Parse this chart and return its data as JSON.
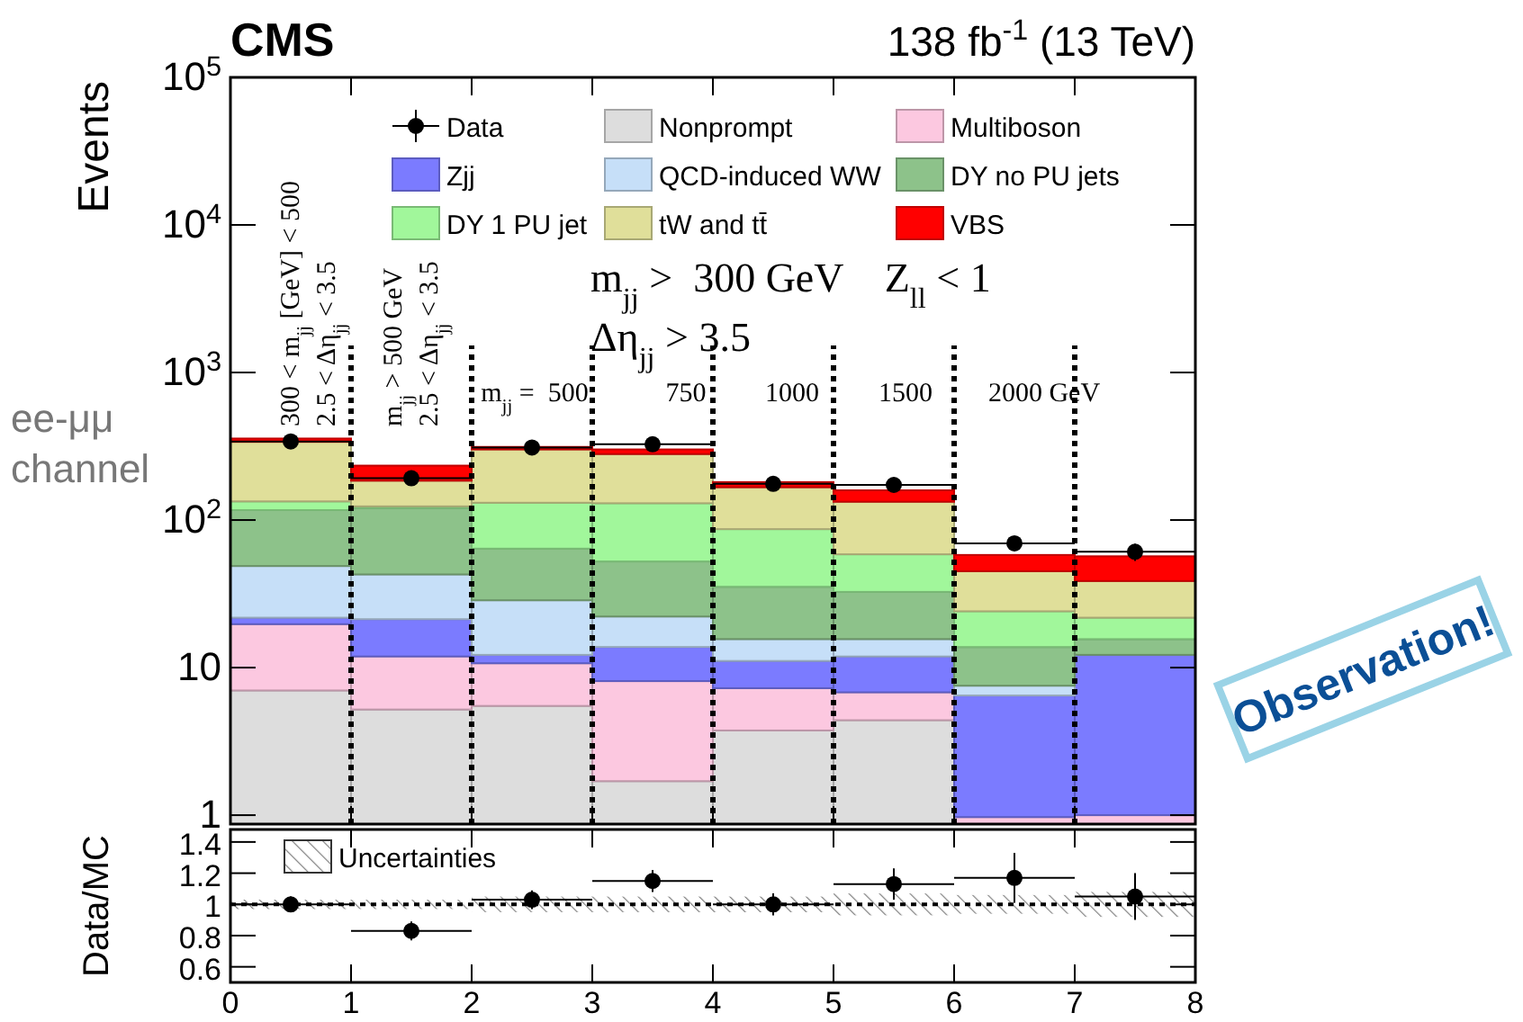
{
  "chart_data": [
    {
      "type": "bar",
      "title": "CMS",
      "subtitle": "138 fb$^{-1}$ (13 TeV)",
      "ylabel": "Events",
      "stacked": true,
      "log": true,
      "legend": "top",
      "x": [
        0.5,
        1.5,
        2.5,
        3.5,
        4.5,
        5.5,
        6.5,
        7.5
      ],
      "xlim": [
        0,
        8
      ],
      "xticks": [
        0,
        1,
        2,
        3,
        4,
        5,
        6,
        7,
        8
      ],
      "tick_labels": "y",
      "ylim": [
        0.87,
        100000
      ],
      "yticks": [
        1,
        10,
        {
          "value": 100,
          "label": "10$^{2}$"
        },
        {
          "value": 1000,
          "label": "10$^{3}$"
        },
        {
          "value": 10000,
          "label": "10$^{4}$"
        },
        {
          "value": 100000,
          "label": "10$^{5}$"
        }
      ],
      "marker": "circle",
      "series": [
        {
          "name": "Data",
          "type": "scatter",
          "color": "#000000",
          "values": [
            341,
            192,
            310,
            326,
            176,
            173,
            69.5,
            60.9
          ],
          "errors": [
            18,
            14,
            18,
            18,
            13,
            13,
            8,
            8
          ],
          "xerrors": [
            0.5,
            0.5,
            0.5,
            0.5,
            0.5,
            0.5,
            0.5,
            0.5
          ]
        },
        {
          "name": "Nonprompt",
          "color": "#dddddd",
          "values": [
            7.0,
            5.2,
            5.5,
            1.7,
            3.75,
            4.4,
            null,
            null
          ]
        },
        {
          "name": "Multiboson",
          "color": "#fcc8e0",
          "values": [
            12.7,
            6.7,
            5.2,
            6.4,
            3.5,
            2.4,
            0.97,
            1.0
          ]
        },
        {
          "name": "Zjj",
          "color": "#7b7bff",
          "values": [
            2.1,
            9.4,
            1.5,
            5.7,
            3.85,
            5.1,
            5.5,
            11.2
          ]
        },
        {
          "name": "QCD-induced WW",
          "color": "#c6dff8",
          "values": [
            27.0,
            21.5,
            16.4,
            8.4,
            4.5,
            3.7,
            1.07,
            null
          ]
        },
        {
          "name": "DY no PU jets",
          "color": "#8dc28a",
          "values": [
            68,
            78,
            35.4,
            30.2,
            19.7,
            17,
            6.25,
            3.4
          ]
        },
        {
          "name": "DY 1 PU jet",
          "color": "#a1f79b",
          "values": [
            17,
            3,
            67,
            77.6,
            51.5,
            26,
            10.3,
            6.2
          ]
        },
        {
          "name": "tW and tt̄",
          "color": "#e0df9a",
          "values": [
            205,
            61,
            170,
            150,
            80,
            74.4,
            20.9,
            16.8
          ]
        },
        {
          "name": "VBS",
          "color": "#ff0000",
          "values": [
            18,
            49,
            12,
            21,
            14,
            26,
            13,
            18.2
          ]
        }
      ],
      "ref_lines": [
        {
          "axis": "x",
          "value": 1,
          "color": "#000000",
          "line_style": "dotted"
        },
        {
          "axis": "x",
          "value": 2,
          "color": "#000000",
          "line_style": "dotted"
        },
        {
          "axis": "x",
          "value": 3,
          "color": "#000000",
          "line_style": "dotted"
        },
        {
          "axis": "x",
          "value": 4,
          "color": "#000000",
          "line_style": "dotted"
        },
        {
          "axis": "x",
          "value": 5,
          "color": "#000000",
          "line_style": "dotted"
        },
        {
          "axis": "x",
          "value": 6,
          "color": "#000000",
          "line_style": "dotted"
        },
        {
          "axis": "x",
          "value": 7,
          "color": "#000000",
          "line_style": "dotted"
        }
      ],
      "annotations": [
        "m$_{jj}$ >  300 GeV    Z$_{ll}$ < 1",
        "Δη$_{jj}$ > 3.5",
        "ee-μμ\nchannel",
        "Observation!",
        "300 < m$_{jj}$ [GeV] < 500\n2.5 < Δη$_{jj}$ < 3.5",
        "m$_{jj}$ > 500 GeV\n2.5 < Δη$_{jj}$ < 3.5",
        "m$_{jj}$ =  500",
        "750",
        "1000",
        "1500",
        "2000 GeV"
      ]
    },
    {
      "type": "scatter",
      "ylabel": "Data/MC",
      "legend": "top left",
      "marker": "circle",
      "x": [
        0.5,
        1.5,
        2.5,
        3.5,
        4.5,
        5.5,
        6.5,
        7.5
      ],
      "xlim": [
        0,
        8
      ],
      "xticks": [
        0,
        1,
        2,
        3,
        4,
        5,
        6,
        7,
        8
      ],
      "ylim": [
        0.5,
        1.48
      ],
      "yticks": [
        0.6,
        0.8,
        1,
        1.2,
        1.4
      ],
      "series": [
        {
          "name": "Uncertainties",
          "type": "bar",
          "color": "#808080",
          "base": [
            0.97,
            0.97,
            0.95,
            0.95,
            0.95,
            0.93,
            0.94,
            0.92
          ],
          "values": [
            0.06,
            0.06,
            0.1,
            0.1,
            0.1,
            0.14,
            0.12,
            0.16
          ]
        },
        {
          "color": "#000000",
          "values": [
            1.0,
            0.83,
            1.03,
            1.15,
            1.0,
            1.13,
            1.17,
            1.05
          ],
          "errors": [
            0.05,
            0.06,
            0.06,
            0.07,
            0.07,
            0.1,
            0.16,
            0.15
          ],
          "xerrors": [
            0.5,
            0.5,
            0.5,
            0.5,
            0.5,
            0.5,
            0.5,
            0.5
          ]
        }
      ],
      "ref_lines": [
        {
          "axis": "y",
          "value": 1,
          "color": "#000000",
          "line_style": "dotted"
        }
      ]
    }
  ]
}
